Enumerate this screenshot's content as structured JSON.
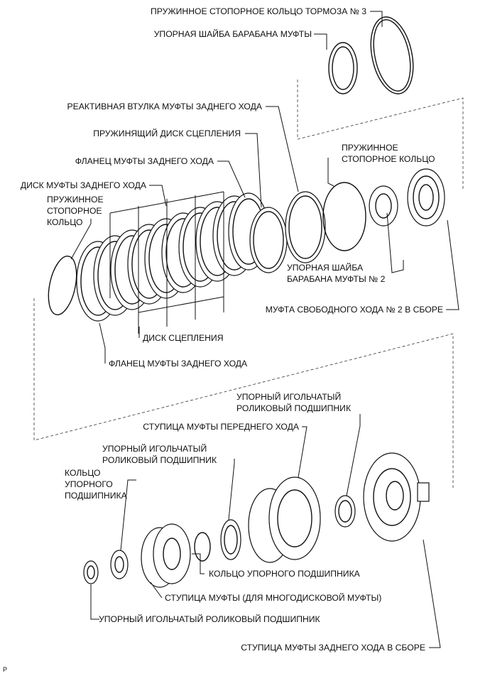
{
  "labels": {
    "snap_ring_brake3": "ПРУЖИННОЕ СТОПОРНОЕ КОЛЬЦО ТОРМОЗА № 3",
    "drum_thrust_washer": "УПОРНАЯ ШАЙБА БАРАБАНА МУФТЫ",
    "reverse_reaction_sleeve": "РЕАКТИВНАЯ ВТУЛКА МУФТЫ ЗАДНЕГО ХОДА",
    "cushion_plate": "ПРУЖИНЯЩИЙ ДИСК СЦЕПЛЕНИЯ",
    "reverse_flange_top": "ФЛАНЕЦ МУФТЫ ЗАДНЕГО ХОДА",
    "reverse_disc": "ДИСК МУФТЫ ЗАДНЕГО ХОДА",
    "snap_ring_left_1": "ПРУЖИННОЕ",
    "snap_ring_left_2": "СТОПОРНОЕ",
    "snap_ring_left_3": "КОЛЬЦО",
    "snap_ring_right_1": "ПРУЖИННОЕ",
    "snap_ring_right_2": "СТОПОРНОЕ КОЛЬЦО",
    "drum_washer2_1": "УПОРНАЯ ШАЙБА",
    "drum_washer2_2": "БАРАБАНА МУФТЫ № 2",
    "one_way_clutch": "МУФТА СВОБОДНОГО ХОДА № 2 В СБОРЕ",
    "clutch_disc": "ДИСК СЦЕПЛЕНИЯ",
    "reverse_flange_bottom": "ФЛАНЕЦ МУФТЫ ЗАДНЕГО ХОДА",
    "needle_bearing_top_1": "УПОРНЫЙ ИГОЛЬЧАТЫЙ",
    "needle_bearing_top_2": "РОЛИКОВЫЙ ПОДШИПНИК",
    "forward_hub": "СТУПИЦА МУФТЫ ПЕРЕДНЕГО ХОДА",
    "needle_bearing_mid_1": "УПОРНЫЙ ИГОЛЬЧАТЫЙ",
    "needle_bearing_mid_2": "РОЛИКОВЫЙ ПОДШИПНИК",
    "bearing_race_left_1": "КОЛЬЦО",
    "bearing_race_left_2": "УПОРНОГО",
    "bearing_race_left_3": "ПОДШИПНИКА",
    "bearing_race_mid": "КОЛЬЦО УПОРНОГО ПОДШИПНИКА",
    "clutch_hub_multi": "СТУПИЦА МУФТЫ (ДЛЯ МНОГОДИСКОВОЙ МУФТЫ)",
    "needle_bearing_bottom": "УПОРНЫЙ ИГОЛЬЧАТЫЙ РОЛИКОВЫЙ ПОДШИПНИК",
    "reverse_hub_assy": "СТУПИЦА МУФТЫ ЗАДНЕГО ХОДА В СБОРЕ",
    "corner_mark": "P"
  }
}
